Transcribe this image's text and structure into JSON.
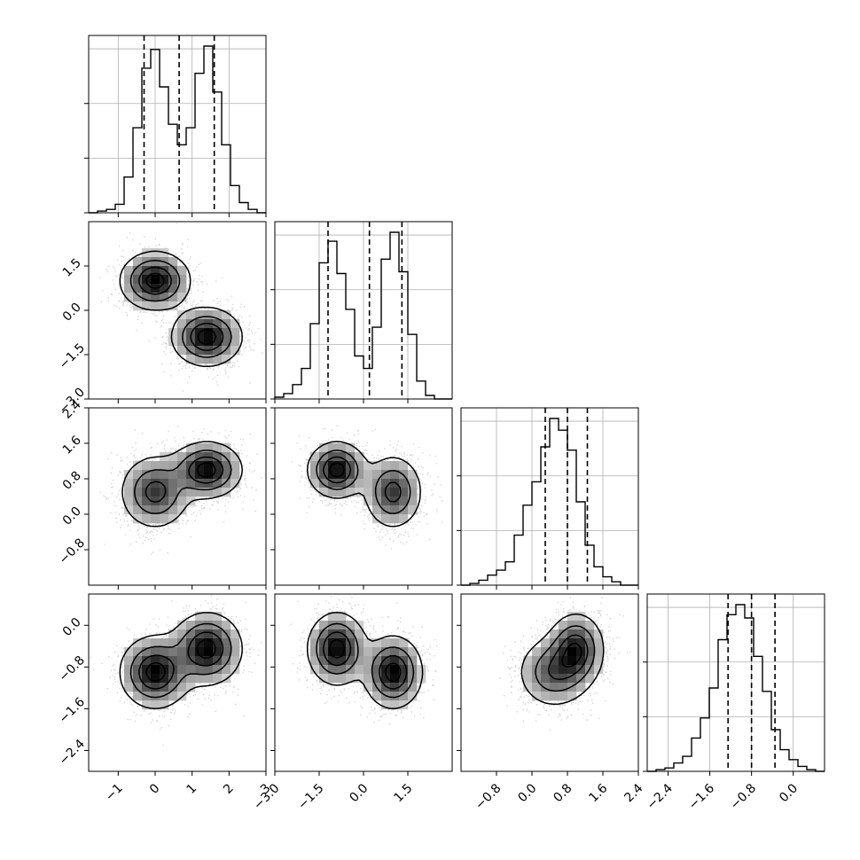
{
  "chart_data": {
    "type": "corner",
    "grid": true,
    "grid_color": "#b0b0b0",
    "line_color": "#000000",
    "hist_bins": 20,
    "params": [
      {
        "range": [
          -1.8,
          3.0
        ],
        "ticks": [
          -1,
          0,
          1,
          2,
          3
        ],
        "tick_labels": [
          "−1",
          "0",
          "1",
          "2",
          "3"
        ],
        "quantiles": [
          -0.3,
          0.65,
          1.6
        ]
      },
      {
        "range": [
          -3.0,
          3.0
        ],
        "ticks": [
          -3.0,
          -1.5,
          0.0,
          1.5
        ],
        "tick_labels": [
          "−3.0",
          "−1.5",
          "0.0",
          "1.5"
        ],
        "quantiles": [
          -1.2,
          0.2,
          1.3
        ]
      },
      {
        "range": [
          -1.6,
          2.4
        ],
        "ticks": [
          -0.8,
          0.0,
          0.8,
          1.6,
          2.4
        ],
        "tick_labels": [
          "−0.8",
          "0.0",
          "0.8",
          "1.6",
          "2.4"
        ],
        "quantiles": [
          0.3,
          0.8,
          1.25
        ]
      },
      {
        "range": [
          -2.8,
          0.6
        ],
        "ticks": [
          -2.4,
          -1.6,
          -0.8,
          0.0
        ],
        "tick_labels": [
          "−2.4",
          "−1.6",
          "−0.8",
          "0.0"
        ],
        "quantiles": [
          -1.25,
          -0.8,
          -0.35
        ]
      }
    ],
    "histograms": [
      [
        0.0,
        0.01,
        0.02,
        0.05,
        0.21,
        0.5,
        0.85,
        0.96,
        0.74,
        0.52,
        0.4,
        0.5,
        0.82,
        0.98,
        0.71,
        0.4,
        0.16,
        0.06,
        0.02,
        0.0
      ],
      [
        0.01,
        0.03,
        0.08,
        0.17,
        0.42,
        0.76,
        0.88,
        0.7,
        0.5,
        0.24,
        0.17,
        0.4,
        0.78,
        0.93,
        0.71,
        0.36,
        0.1,
        0.02,
        0.0,
        0.0
      ],
      [
        0.0,
        0.01,
        0.03,
        0.06,
        0.09,
        0.14,
        0.3,
        0.48,
        0.62,
        0.83,
        1.0,
        0.93,
        0.81,
        0.5,
        0.24,
        0.11,
        0.05,
        0.02,
        0.0,
        0.0
      ],
      [
        0.0,
        0.01,
        0.02,
        0.05,
        0.09,
        0.2,
        0.32,
        0.5,
        0.79,
        0.94,
        1.0,
        0.92,
        0.69,
        0.48,
        0.25,
        0.13,
        0.07,
        0.03,
        0.01,
        0.0
      ]
    ],
    "mixture": {
      "weights": [
        0.5,
        0.5
      ],
      "components": [
        {
          "mean": [
            0.0,
            1.0,
            0.5,
            -0.9
          ],
          "sd": [
            0.48,
            0.5,
            0.42,
            0.35
          ]
        },
        {
          "mean": [
            1.4,
            -0.9,
            1.0,
            -0.45
          ],
          "sd": [
            0.48,
            0.5,
            0.32,
            0.35
          ]
        }
      ]
    }
  }
}
